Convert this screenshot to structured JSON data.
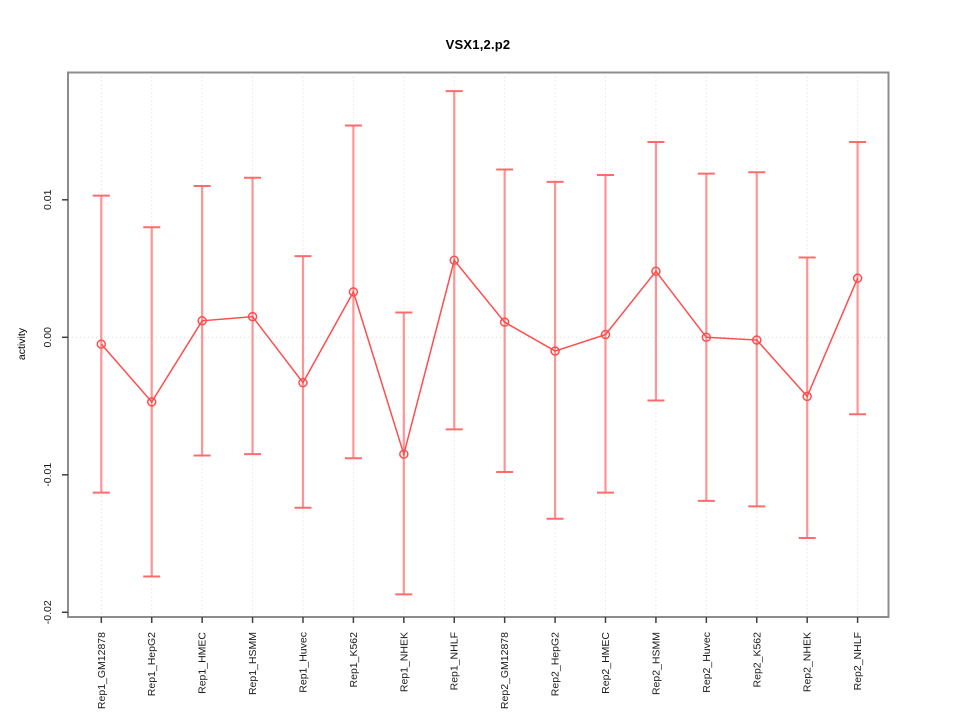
{
  "chart_data": {
    "type": "line",
    "title": "VSX1,2.p2",
    "xlabel": "",
    "ylabel": "activity",
    "categories": [
      "Rep1_GM12878",
      "Rep1_HepG2",
      "Rep1_HMEC",
      "Rep1_HSMM",
      "Rep1_Huvec",
      "Rep1_K562",
      "Rep1_NHEK",
      "Rep1_NHLF",
      "Rep2_GM12878",
      "Rep2_HepG2",
      "Rep2_HMEC",
      "Rep2_HSMM",
      "Rep2_Huvec",
      "Rep2_K562",
      "Rep2_NHEK",
      "Rep2_NHLF"
    ],
    "series": [
      {
        "name": "activity",
        "values": [
          -0.0005,
          -0.0047,
          0.0012,
          0.0015,
          -0.0033,
          0.0033,
          -0.0085,
          0.0056,
          0.0011,
          -0.001,
          0.0002,
          0.0048,
          0.0,
          -0.0002,
          -0.0043,
          0.0043
        ],
        "error_upper": [
          0.0103,
          0.008,
          0.011,
          0.0116,
          0.0059,
          0.0154,
          0.0018,
          0.0179,
          0.0122,
          0.0113,
          0.0118,
          0.0142,
          0.0119,
          0.012,
          0.0058,
          0.0142
        ],
        "error_lower": [
          -0.0113,
          -0.0174,
          -0.0086,
          -0.0085,
          -0.0124,
          -0.0088,
          -0.0187,
          -0.0067,
          -0.0098,
          -0.0132,
          -0.0113,
          -0.0046,
          -0.0119,
          -0.0123,
          -0.0146,
          -0.0056
        ]
      }
    ],
    "yticks": [
      "0.01",
      "0.00",
      "-0.01",
      "-0.02"
    ],
    "ytick_values": [
      0.01,
      0.0,
      -0.01,
      -0.02
    ],
    "ylim": [
      -0.0205,
      0.0195
    ],
    "grid": "vertical dotted gridline per category plus dotted horizontal line at zero",
    "legend_position": "none",
    "marker": "open-circle",
    "colors": {
      "line": "#ff4d4d",
      "point": "#ff4d4d",
      "error_bar": "#ff9494",
      "error_cap": "#ff6b6b",
      "grid": "#d9d9d9",
      "zero_line": "#dcdcdc",
      "box": "#8c8c8c",
      "tick": "#404040",
      "text": "#1a1a1a"
    }
  }
}
